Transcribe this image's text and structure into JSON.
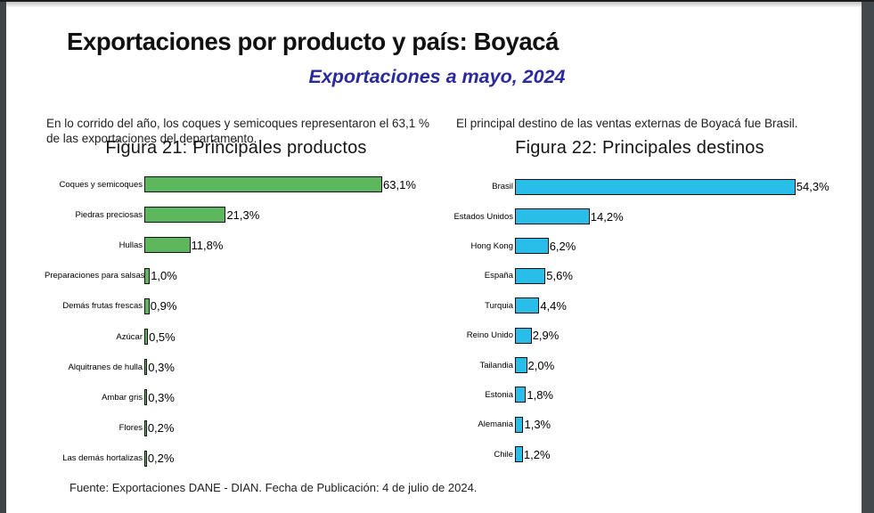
{
  "page": {
    "title": "Exportaciones por producto y país: Boyacá",
    "subtitle": "Exportaciones a mayo, 2024",
    "footer": "Fuente: Exportaciones DANE - DIAN. Fecha de Publicación: 4 de julio de 2024."
  },
  "sections": [
    {
      "intro": "En lo corrido del año, los coques y semicoques representaron el 63,1 % de las exportaciones del departamento."
    },
    {
      "intro": "El principal destino de las ventas externas de Boyacá fue Brasil."
    }
  ],
  "colors": {
    "products_bar": "#5db75c",
    "destinations_bar": "#29bde9",
    "bar_border": "#111111",
    "subtitle_blue": "#2a2a9e",
    "viewer_edge": "#43484c"
  },
  "chart_data": [
    {
      "type": "bar",
      "orientation": "horizontal",
      "title": "Figura 21: Principales productos",
      "categories": [
        "Coques y semicoques",
        "Piedras preciosas",
        "Hullas",
        "Preparaciones para salsas",
        "Demás frutas frescas",
        "Azúcar",
        "Alquitranes de hulla",
        "Ambar gris",
        "Flores",
        "Las demás hortalizas"
      ],
      "values": [
        63.1,
        21.3,
        11.8,
        1.0,
        0.9,
        0.5,
        0.3,
        0.3,
        0.2,
        0.2
      ],
      "value_labels": [
        "63,1%",
        "21,3%",
        "11,8%",
        "1,0%",
        "0,9%",
        "0,5%",
        "0,3%",
        "0,3%",
        "0,2%",
        "0,2%"
      ],
      "unit": "%",
      "bar_color": "#5db75c",
      "xlim": [
        0,
        70
      ],
      "grid": false,
      "legend": false
    },
    {
      "type": "bar",
      "orientation": "horizontal",
      "title": "Figura 22: Principales destinos",
      "categories": [
        "Brasil",
        "Estados Unidos",
        "Hong Kong",
        "España",
        "Turquia",
        "Reino Unido",
        "Tailandia",
        "Estonia",
        "Alemania",
        "Chile"
      ],
      "values": [
        54.3,
        14.2,
        6.2,
        5.6,
        4.4,
        2.9,
        2.0,
        1.8,
        1.3,
        1.2
      ],
      "value_labels": [
        "54,3%",
        "14,2%",
        "6,2%",
        "5,6%",
        "4,4%",
        "2,9%",
        "2,0%",
        "1,8%",
        "1,3%",
        "1,2%"
      ],
      "unit": "%",
      "bar_color": "#29bde9",
      "xlim": [
        0,
        60
      ],
      "grid": false,
      "legend": false
    }
  ]
}
